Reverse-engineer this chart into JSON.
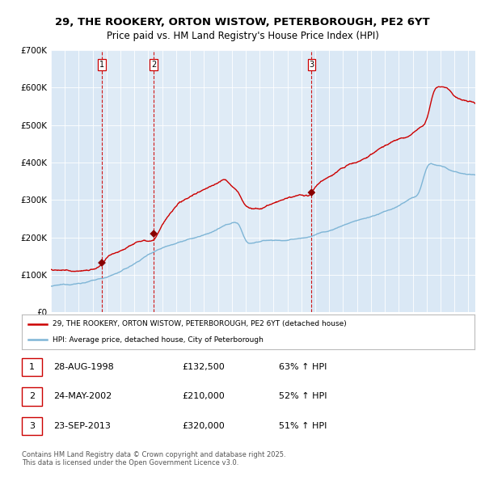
{
  "title_line1": "29, THE ROOKERY, ORTON WISTOW, PETERBOROUGH, PE2 6YT",
  "title_line2": "Price paid vs. HM Land Registry's House Price Index (HPI)",
  "legend_line1": "29, THE ROOKERY, ORTON WISTOW, PETERBOROUGH, PE2 6YT (detached house)",
  "legend_line2": "HPI: Average price, detached house, City of Peterborough",
  "sale_labels": [
    "1",
    "2",
    "3"
  ],
  "sale_dates_num": [
    1998.66,
    2002.39,
    2013.73
  ],
  "sale_prices": [
    132500,
    210000,
    320000
  ],
  "sale_dates_str": [
    "28-AUG-1998",
    "24-MAY-2002",
    "23-SEP-2013"
  ],
  "sale_prices_str": [
    "£132,500",
    "£210,000",
    "£320,000"
  ],
  "sale_pct": [
    "63% ↑ HPI",
    "52% ↑ HPI",
    "51% ↑ HPI"
  ],
  "hpi_color": "#7EB5D6",
  "price_color": "#CC0000",
  "marker_color": "#880000",
  "background_color": "#DAE8F5",
  "grid_color": "#FFFFFF",
  "dashed_line_color": "#CC0000",
  "ylim": [
    0,
    700000
  ],
  "xlim_start": 1995.0,
  "xlim_end": 2025.5,
  "footer_text": "Contains HM Land Registry data © Crown copyright and database right 2025.\nThis data is licensed under the Open Government Licence v3.0."
}
